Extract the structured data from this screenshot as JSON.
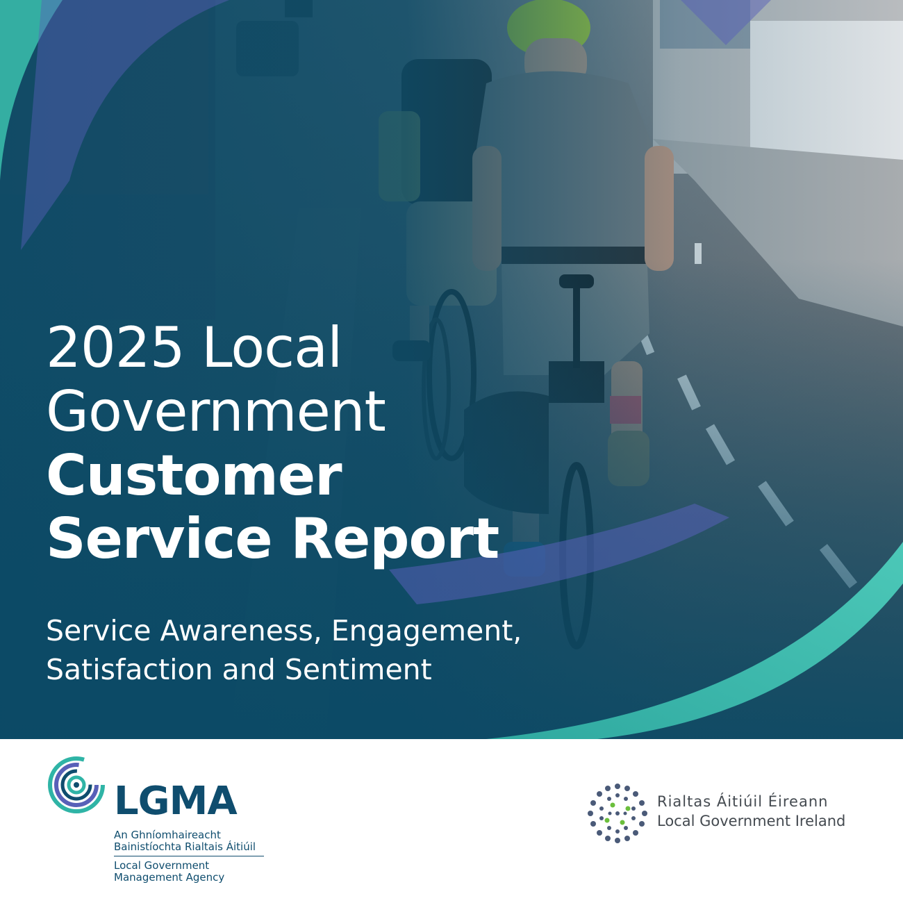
{
  "cover": {
    "title_line1": "2025 Local",
    "title_line2": "Government",
    "title_line3": "Customer",
    "title_line4": "Service Report",
    "subtitle_line1": "Service Awareness, Engagement,",
    "subtitle_line2": "Satisfaction and Sentiment"
  },
  "lgma": {
    "acronym": "LGMA",
    "name_ga_line1": "An Ghníomhaireacht",
    "name_ga_line2": "Bainistíochta Rialtais Áitiúil",
    "name_en_line1": "Local Government",
    "name_en_line2": "Management Agency"
  },
  "lgi": {
    "name_ga": "Rialtas Áitiúil Éireann",
    "name_en": "Local Government Ireland"
  },
  "colors": {
    "navy": "#0b4a66",
    "teal": "#3bbfad",
    "violet": "#5860b8",
    "lgma_blue": "#0f4d6e",
    "lgi_green": "#6bbf3c"
  }
}
